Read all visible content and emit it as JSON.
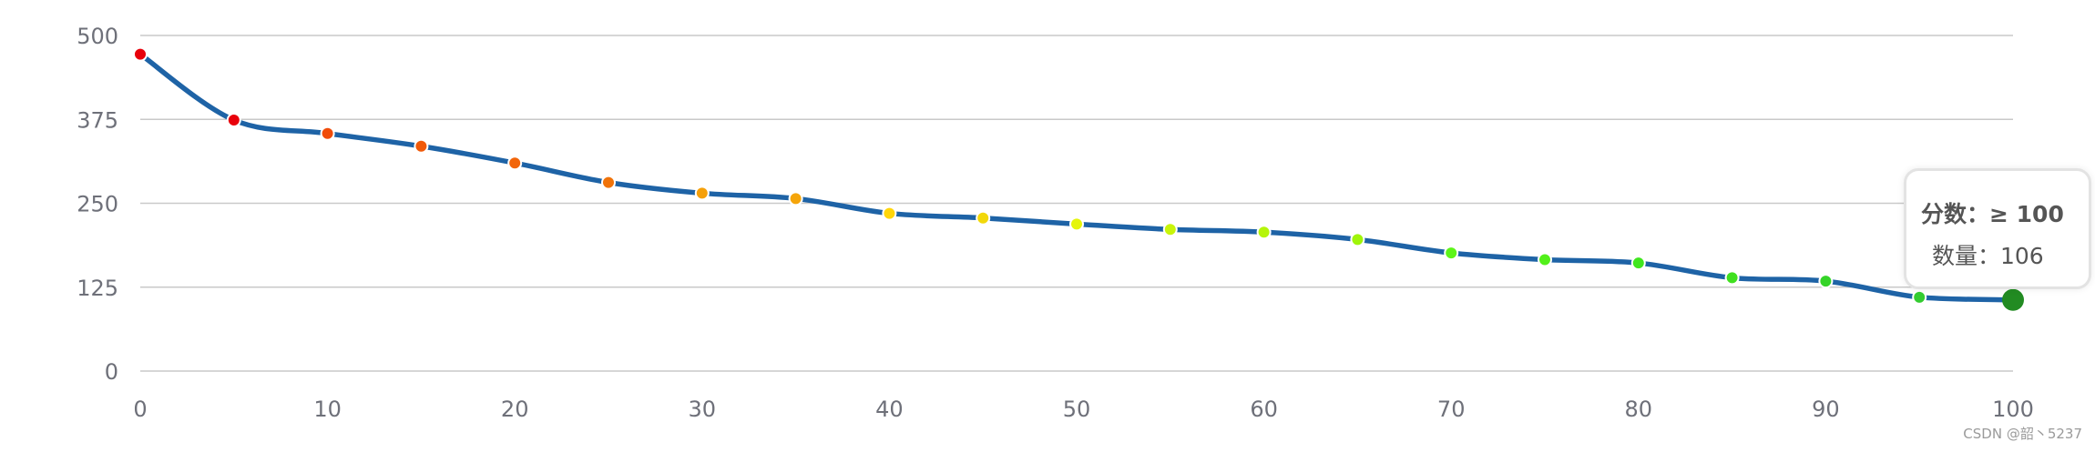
{
  "chart_data": {
    "type": "line",
    "xlabel": "",
    "ylabel": "",
    "xlim": [
      0,
      100
    ],
    "ylim": [
      0,
      500
    ],
    "x_ticks": [
      0,
      10,
      20,
      30,
      40,
      50,
      60,
      70,
      80,
      90,
      100
    ],
    "y_ticks": [
      0,
      125,
      250,
      375,
      500
    ],
    "grid": "horizontal",
    "series": [
      {
        "line_color": "#1e63a6",
        "x": [
          0,
          5,
          10,
          15,
          20,
          25,
          30,
          35,
          40,
          45,
          50,
          55,
          60,
          65,
          70,
          75,
          80,
          85,
          90,
          95,
          100
        ],
        "values": [
          472,
          374,
          354,
          335,
          310,
          281,
          265,
          257,
          235,
          228,
          219,
          211,
          207,
          196,
          176,
          166,
          161,
          139,
          134,
          110,
          106
        ],
        "point_colors": [
          "#e8000b",
          "#e8000b",
          "#f04c0a",
          "#f05a0a",
          "#f2650a",
          "#f0730a",
          "#f5a00a",
          "#f5a50a",
          "#ffd60a",
          "#f2d80a",
          "#e5f50a",
          "#c8f50a",
          "#b5f50a",
          "#a0f50a",
          "#5df51a",
          "#52f01a",
          "#40e61e",
          "#40e020",
          "#35d428",
          "#33cc30",
          "#228b22"
        ]
      }
    ],
    "tooltip": {
      "score_label": "分数：≥ 100",
      "count_label": "数量：106",
      "highlighted_index": 20
    }
  },
  "watermark": "CSDN @韶丶5237"
}
